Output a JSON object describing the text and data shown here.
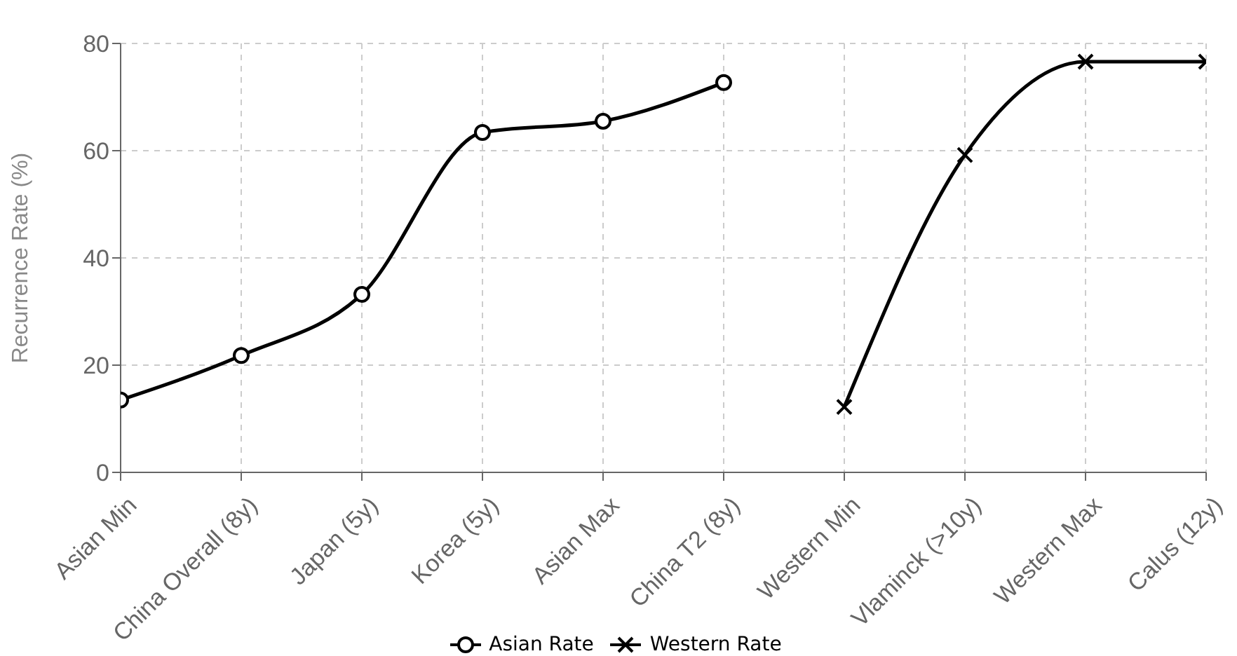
{
  "chart_data": {
    "type": "line",
    "ylabel": "Recurrence Rate (%)",
    "categories": [
      "Asian Min",
      "China Overall (8y)",
      "Japan (5y)",
      "Korea (5y)",
      "Asian Max",
      "China T2 (8y)",
      "Western Min",
      "Vlaminck (>10y)",
      "Western Max",
      "Calus (12y)"
    ],
    "series": [
      {
        "name": "Asian Rate",
        "color": "#000000",
        "marker": "circle",
        "values": [
          13.5,
          21.8,
          33.2,
          63.4,
          65.5,
          72.7,
          null,
          null,
          null,
          null
        ]
      },
      {
        "name": "Western Rate",
        "color": "#000000",
        "marker": "cross",
        "values": [
          null,
          null,
          null,
          null,
          null,
          null,
          12.2,
          59.2,
          76.6,
          76.6
        ]
      }
    ],
    "ylim": [
      0,
      80
    ],
    "yticks": [
      0,
      20,
      40,
      60,
      80
    ],
    "grid": true,
    "legend": "bottom",
    "line_style": "solid"
  }
}
